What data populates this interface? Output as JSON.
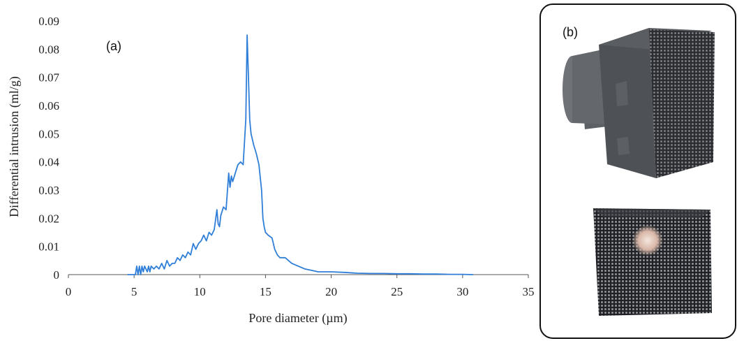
{
  "chart_data": {
    "type": "line",
    "panel_label": "(a)",
    "xlabel": "Pore diameter (µm)",
    "ylabel": "Differential intrusion (ml/g)",
    "xlim": [
      0,
      35
    ],
    "ylim": [
      0,
      0.09
    ],
    "xticks": [
      "0",
      "5",
      "10",
      "15",
      "20",
      "25",
      "30",
      "35"
    ],
    "yticks": [
      "0",
      "0.01",
      "0.02",
      "0.03",
      "0.04",
      "0.05",
      "0.06",
      "0.07",
      "0.08",
      "0.09"
    ],
    "grid": false,
    "line_color": "#2f7ed8",
    "series": [
      {
        "x": [
          4.5,
          5.1,
          5.2,
          5.3,
          5.4,
          5.5,
          5.6,
          5.7,
          5.8,
          6.0,
          6.1,
          6.2,
          6.3,
          6.5,
          6.7,
          6.9,
          7.1,
          7.3,
          7.5,
          7.7,
          7.9,
          8.1,
          8.3,
          8.5,
          8.7,
          8.9,
          9.1,
          9.3,
          9.5,
          9.7,
          9.9,
          10.1,
          10.3,
          10.5,
          10.7,
          10.9,
          11.1,
          11.3,
          11.4,
          11.5,
          11.6,
          11.8,
          12.0,
          12.2,
          12.3,
          12.4,
          12.5,
          12.7,
          12.9,
          13.1,
          13.3,
          13.4,
          13.5,
          13.6,
          13.7,
          13.8,
          13.9,
          14.1,
          14.3,
          14.5,
          14.7,
          14.8,
          14.9,
          15.0,
          15.2,
          15.5,
          15.7,
          15.9,
          16.1,
          16.5,
          17.0,
          17.5,
          18.0,
          18.5,
          19.0,
          20.0,
          21.0,
          22.0,
          23.0,
          24.0,
          25.0,
          26.0,
          27.0,
          28.0,
          29.0,
          30.0,
          30.8
        ],
        "y": [
          0,
          0,
          0.003,
          0,
          0.003,
          0,
          0.003,
          0.001,
          0.003,
          0.001,
          0.003,
          0.001,
          0.003,
          0.002,
          0.003,
          0.002,
          0.004,
          0.002,
          0.005,
          0.003,
          0.004,
          0.004,
          0.006,
          0.005,
          0.007,
          0.006,
          0.008,
          0.007,
          0.011,
          0.009,
          0.011,
          0.012,
          0.014,
          0.012,
          0.015,
          0.014,
          0.016,
          0.023,
          0.018,
          0.017,
          0.021,
          0.024,
          0.023,
          0.036,
          0.031,
          0.035,
          0.033,
          0.036,
          0.039,
          0.04,
          0.039,
          0.047,
          0.055,
          0.085,
          0.07,
          0.055,
          0.05,
          0.046,
          0.043,
          0.039,
          0.03,
          0.02,
          0.017,
          0.015,
          0.014,
          0.013,
          0.009,
          0.007,
          0.006,
          0.006,
          0.004,
          0.003,
          0.002,
          0.0015,
          0.001,
          0.001,
          0.0008,
          0.0005,
          0.0004,
          0.0004,
          0.0003,
          0.0003,
          0.0002,
          0.0002,
          0.0001,
          0.0001,
          0
        ]
      }
    ]
  },
  "panel_b": {
    "label": "(b)",
    "border_color": "#111111"
  }
}
